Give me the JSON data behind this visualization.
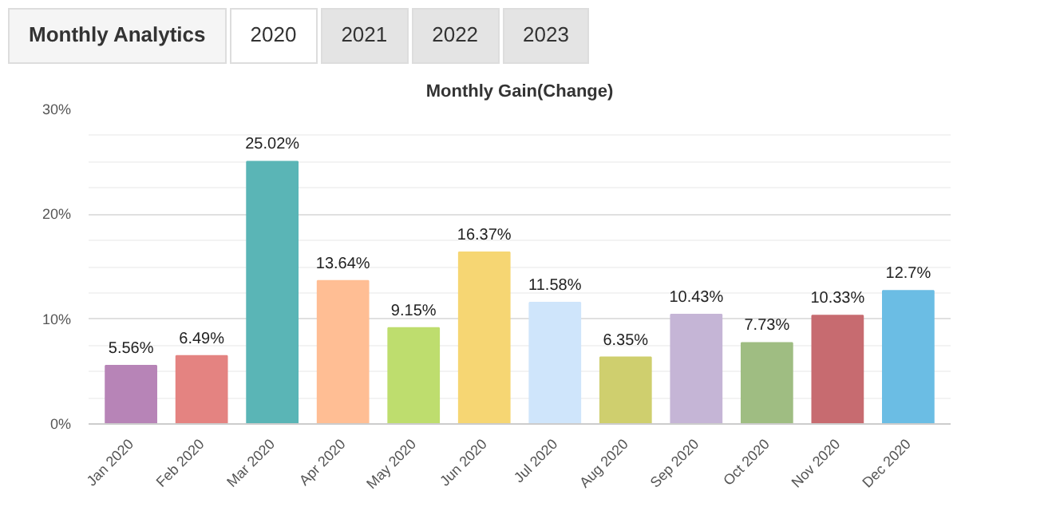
{
  "chart_data": {
    "type": "bar",
    "title": "Monthly Gain(Change)",
    "annotations": [
      "Monthly Analytics",
      "2020",
      "2021",
      "2022",
      "2023"
    ],
    "categories": [
      "Jan 2020",
      "Feb 2020",
      "Mar 2020",
      "Apr 2020",
      "May 2020",
      "Jun 2020",
      "Jul 2020",
      "Aug 2020",
      "Sep 2020",
      "Oct 2020",
      "Nov 2020",
      "Dec 2020"
    ],
    "values": [
      5.56,
      6.49,
      25.02,
      13.64,
      9.15,
      16.37,
      11.58,
      6.35,
      10.43,
      7.73,
      10.33,
      12.7
    ],
    "value_labels": [
      "5.56%",
      "6.49%",
      "25.02%",
      "13.64%",
      "9.15%",
      "16.37%",
      "11.58%",
      "6.35%",
      "10.43%",
      "7.73%",
      "10.33%",
      "12.7%"
    ],
    "colors": [
      "#b784b7",
      "#e48381",
      "#5ab5b6",
      "#ffbe94",
      "#bedd6e",
      "#f6d673",
      "#cfe5fb",
      "#cfcf6e",
      "#c5b5d6",
      "#9fbd82",
      "#c76b70",
      "#6bbde4"
    ],
    "ylim": [
      0,
      30
    ],
    "yticks": [
      {
        "value": 0,
        "label": "0%"
      },
      {
        "value": 10,
        "label": "10%"
      },
      {
        "value": 20,
        "label": "20%"
      },
      {
        "value": 30,
        "label": "30%"
      }
    ],
    "grid": "y"
  }
}
